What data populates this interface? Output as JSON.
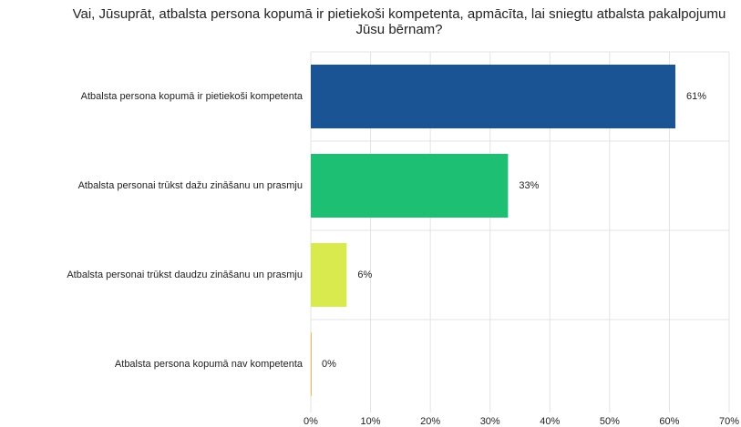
{
  "chart_data": {
    "type": "barh",
    "title": "Vai, Jūsuprāt, atbalsta persona kopumā ir pietiekoši kompetenta, apmācīta, lai sniegtu atbalsta pakalpojumu Jūsu bērnam?",
    "categories": [
      "Atbalsta persona kopumā ir pietiekoši kompetenta",
      "Atbalsta personai trūkst dažu zināšanu un prasmju",
      "Atbalsta personai trūkst daudzu zināšanu un prasmju",
      "Atbalsta persona kopumā nav kompetenta"
    ],
    "values": [
      61,
      33,
      6,
      0
    ],
    "value_labels": [
      "61%",
      "33%",
      "6%",
      "0%"
    ],
    "colors": [
      "#1a5494",
      "#1dbf73",
      "#d9ea4e",
      "#f2b94f"
    ],
    "xlim": [
      0,
      70
    ],
    "xticks": [
      {
        "value": 0,
        "label": "0%"
      },
      {
        "value": 10,
        "label": "10%"
      },
      {
        "value": 20,
        "label": "20%"
      },
      {
        "value": 30,
        "label": "30%"
      },
      {
        "value": 40,
        "label": "40%"
      },
      {
        "value": 50,
        "label": "50%"
      },
      {
        "value": 60,
        "label": "60%"
      },
      {
        "value": 70,
        "label": "70%"
      }
    ],
    "grid": true
  }
}
